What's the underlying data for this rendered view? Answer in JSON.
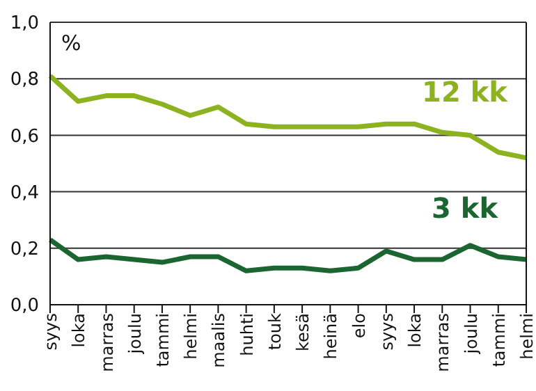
{
  "chart_data": {
    "type": "line",
    "ylabel": "%",
    "categories": [
      "syys",
      "loka",
      "marras",
      "joulu",
      "tammi",
      "helmi",
      "maalis",
      "huhti",
      "touk",
      "kesä",
      "heinä",
      "elo",
      "syys",
      "loka",
      "marras",
      "joulu",
      "tammi",
      "helmi"
    ],
    "series": [
      {
        "name": "12 kk",
        "color": "#8cb31f",
        "values": [
          0.81,
          0.72,
          0.74,
          0.74,
          0.71,
          0.67,
          0.7,
          0.64,
          0.63,
          0.63,
          0.63,
          0.63,
          0.64,
          0.64,
          0.61,
          0.6,
          0.54,
          0.52
        ]
      },
      {
        "name": "3 kk",
        "color": "#1b6530",
        "values": [
          0.23,
          0.16,
          0.17,
          0.16,
          0.15,
          0.17,
          0.17,
          0.12,
          0.13,
          0.13,
          0.12,
          0.13,
          0.19,
          0.16,
          0.16,
          0.21,
          0.17,
          0.16
        ]
      }
    ],
    "ylim": [
      0,
      1
    ],
    "yticks": [
      {
        "value": 0,
        "label": "0,0"
      },
      {
        "value": 0.2,
        "label": "0,2"
      },
      {
        "value": 0.4,
        "label": "0,4"
      },
      {
        "value": 0.6,
        "label": "0,6"
      },
      {
        "value": 0.8,
        "label": "0,8"
      },
      {
        "value": 1,
        "label": "1,0"
      }
    ],
    "grid": "y",
    "marker": "none",
    "line_style": "solid"
  }
}
